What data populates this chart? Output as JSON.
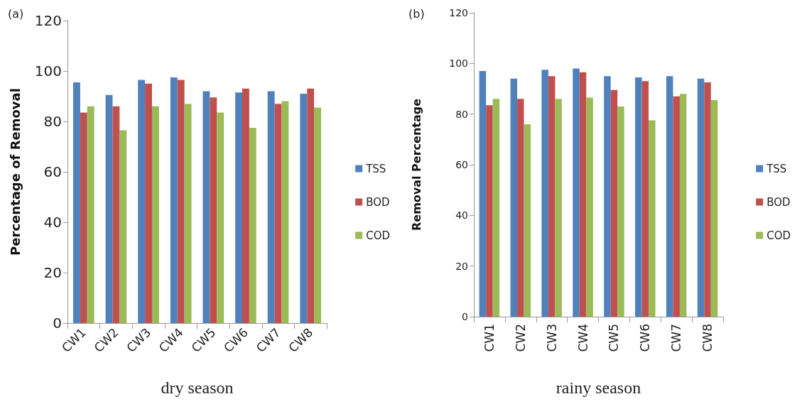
{
  "chart_data": [
    {
      "type": "bar",
      "title": "(a)",
      "xlabel": "dry season",
      "ylabel": "Percentage of Removal",
      "categories": [
        "CW1",
        "CW2",
        "CW3",
        "CW4",
        "CW5",
        "CW6",
        "CW7",
        "CW8"
      ],
      "series": [
        {
          "name": "TSS",
          "color": "#4f81bd",
          "values": [
            95.5,
            90.5,
            96.5,
            97.5,
            92,
            91.5,
            92,
            91
          ]
        },
        {
          "name": "BOD",
          "color": "#c0504d",
          "values": [
            83.5,
            86,
            95,
            96.5,
            89.5,
            93,
            87,
            93
          ]
        },
        {
          "name": "COD",
          "color": "#9bbb59",
          "values": [
            86,
            76.5,
            86,
            87,
            83.5,
            77.5,
            88,
            85.5
          ]
        }
      ],
      "ylim": [
        0,
        120
      ],
      "yticks": [
        0,
        20,
        40,
        60,
        80,
        100,
        120
      ],
      "grid": false,
      "legend": "right"
    },
    {
      "type": "bar",
      "title": "(b)",
      "xlabel": "rainy season",
      "ylabel": "Removal Percentage",
      "categories": [
        "CW1",
        "CW2",
        "CW3",
        "CW4",
        "CW5",
        "CW6",
        "CW7",
        "CW8"
      ],
      "series": [
        {
          "name": "TSS",
          "color": "#4f81bd",
          "values": [
            97,
            94,
            97.5,
            98,
            95,
            94.5,
            95,
            94
          ]
        },
        {
          "name": "BOD",
          "color": "#c0504d",
          "values": [
            83.5,
            86,
            95,
            96.5,
            89.5,
            93,
            87,
            92.5
          ]
        },
        {
          "name": "COD",
          "color": "#9bbb59",
          "values": [
            86,
            76,
            86,
            86.5,
            83,
            77.5,
            88,
            85.5
          ]
        }
      ],
      "ylim": [
        0,
        120
      ],
      "yticks": [
        0,
        20,
        40,
        60,
        80,
        100,
        120
      ],
      "grid": false,
      "legend": "right"
    }
  ]
}
